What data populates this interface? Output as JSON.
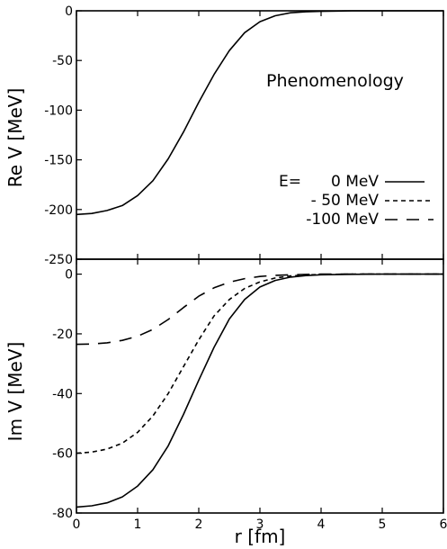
{
  "chart_data": [
    {
      "type": "line",
      "panel": "top",
      "title": "",
      "xlabel": "",
      "ylabel": "Re V [MeV]",
      "xlim": [
        0,
        6
      ],
      "ylim": [
        -250,
        0
      ],
      "xticks": [
        0,
        1,
        2,
        3,
        4,
        5,
        6
      ],
      "yticks": [
        0,
        -50,
        -100,
        -150,
        -200,
        -250
      ],
      "ytick_labels": [
        "0",
        "-50",
        "-100",
        "-150",
        "-200",
        "-250"
      ],
      "grid": false,
      "annotation": "Phenomenology",
      "legend": {
        "title": "E=",
        "placement": "right",
        "entries": [
          {
            "label": "0 MeV",
            "style": "solid"
          },
          {
            "label": "- 50 MeV",
            "style": "short-dash"
          },
          {
            "label": "-100 MeV",
            "style": "long-dash"
          }
        ]
      },
      "series": [
        {
          "style": "solid",
          "x": [
            0,
            0.25,
            0.5,
            0.75,
            1.0,
            1.25,
            1.5,
            1.75,
            2.0,
            2.25,
            2.5,
            2.75,
            3.0,
            3.25,
            3.5,
            3.75,
            4.0,
            4.5,
            5.0,
            5.5,
            6.0
          ],
          "y": [
            -205,
            -204,
            -201,
            -196,
            -186,
            -171,
            -149,
            -122,
            -92,
            -64,
            -40,
            -22,
            -11,
            -5,
            -2,
            -1,
            -0.5,
            0,
            0,
            0,
            0
          ]
        }
      ]
    },
    {
      "type": "line",
      "panel": "bottom",
      "title": "",
      "xlabel": "r [fm]",
      "ylabel": "Im V [MeV]",
      "xlim": [
        0,
        6
      ],
      "ylim": [
        -80,
        5
      ],
      "xticks": [
        0,
        1,
        2,
        3,
        4,
        5,
        6
      ],
      "xtick_labels": [
        "0",
        "1",
        "2",
        "3",
        "4",
        "5",
        "6"
      ],
      "yticks": [
        0,
        -20,
        -40,
        -60,
        -80
      ],
      "ytick_labels": [
        "0",
        "-20",
        "-40",
        "-60",
        "-80"
      ],
      "grid": false,
      "series": [
        {
          "style": "solid",
          "x": [
            0,
            0.25,
            0.5,
            0.75,
            1.0,
            1.25,
            1.5,
            1.75,
            2.0,
            2.25,
            2.5,
            2.75,
            3.0,
            3.25,
            3.5,
            3.75,
            4.0,
            4.5,
            5.0,
            5.5,
            6.0
          ],
          "y": [
            -78,
            -77.6,
            -76.6,
            -74.6,
            -71,
            -65.5,
            -57.5,
            -47,
            -35.5,
            -24.5,
            -15,
            -8.5,
            -4.3,
            -2.1,
            -1,
            -0.5,
            -0.2,
            -0.05,
            0,
            0,
            0
          ]
        },
        {
          "style": "short-dash",
          "x": [
            0,
            0.25,
            0.5,
            0.75,
            1.0,
            1.25,
            1.5,
            1.75,
            2.0,
            2.25,
            2.5,
            2.75,
            3.0,
            3.25,
            3.5,
            3.75,
            4.0,
            4.5,
            5.0,
            5.5,
            6.0
          ],
          "y": [
            -60,
            -59.6,
            -58.6,
            -56.6,
            -53,
            -47.5,
            -40,
            -31,
            -22,
            -14,
            -8.5,
            -4.8,
            -2.6,
            -1.3,
            -0.6,
            -0.3,
            -0.1,
            0,
            0,
            0,
            0
          ]
        },
        {
          "style": "long-dash",
          "x": [
            0,
            0.25,
            0.5,
            0.75,
            1.0,
            1.25,
            1.5,
            1.75,
            2.0,
            2.25,
            2.5,
            2.75,
            3.0,
            3.25,
            3.5,
            3.75,
            4.0,
            4.5,
            5.0,
            5.5,
            6.0
          ],
          "y": [
            -23.5,
            -23.4,
            -23,
            -22.2,
            -20.8,
            -18.5,
            -15.2,
            -11.2,
            -7.4,
            -4.6,
            -2.7,
            -1.5,
            -0.8,
            -0.4,
            -0.2,
            -0.1,
            0,
            0,
            0,
            0,
            0
          ]
        }
      ]
    }
  ]
}
